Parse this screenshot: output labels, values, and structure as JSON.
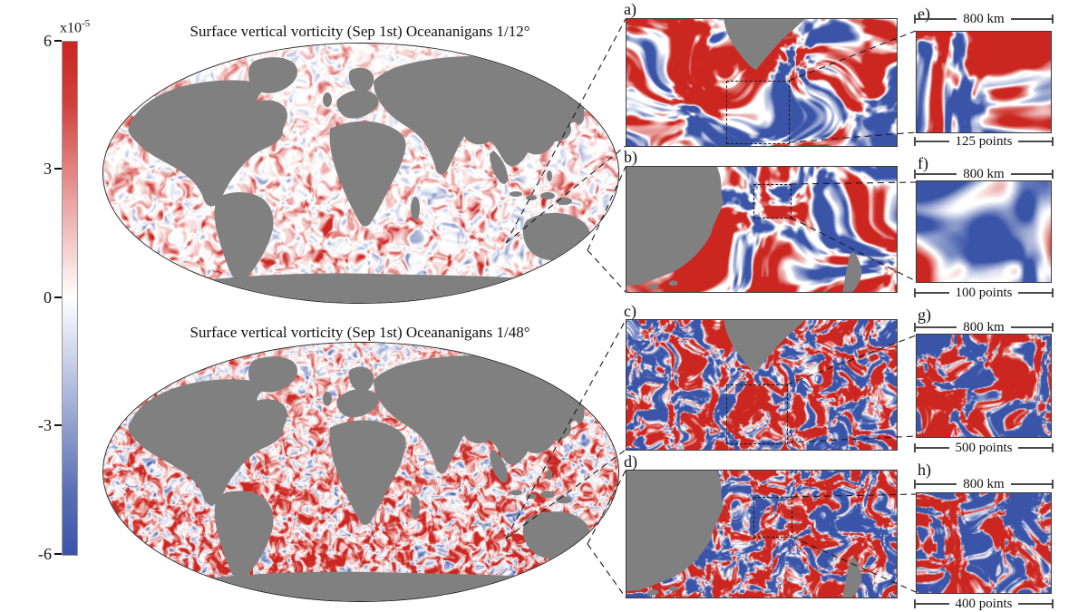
{
  "figure": {
    "colorbar": {
      "multiplier": "x10",
      "exponent": "-5",
      "ticks": [
        "6",
        "3",
        "0",
        "-3",
        "-6"
      ]
    },
    "maps": [
      {
        "title": "Surface vertical vorticity (Sep 1st) Oceananigans 1/12°"
      },
      {
        "title": "Surface vertical vorticity (Sep 1st) Oceananigans 1/48°"
      }
    ],
    "panels": [
      {
        "label": "a)"
      },
      {
        "label": "b)"
      },
      {
        "label": "c)"
      },
      {
        "label": "d)"
      },
      {
        "label": "e)",
        "scale_top": "800 km",
        "scale_bottom": "125 points"
      },
      {
        "label": "f)",
        "scale_top": "800 km",
        "scale_bottom": "100 points"
      },
      {
        "label": "g)",
        "scale_top": "800 km",
        "scale_bottom": "500 points"
      },
      {
        "label": "h)",
        "scale_top": "800 km",
        "scale_bottom": "400 points"
      }
    ],
    "colors": {
      "positive_vorticity": "#cb2620",
      "negative_vorticity": "#3a54a8",
      "zero": "#ffffff",
      "land": "#808080",
      "outline": "#222222"
    }
  }
}
